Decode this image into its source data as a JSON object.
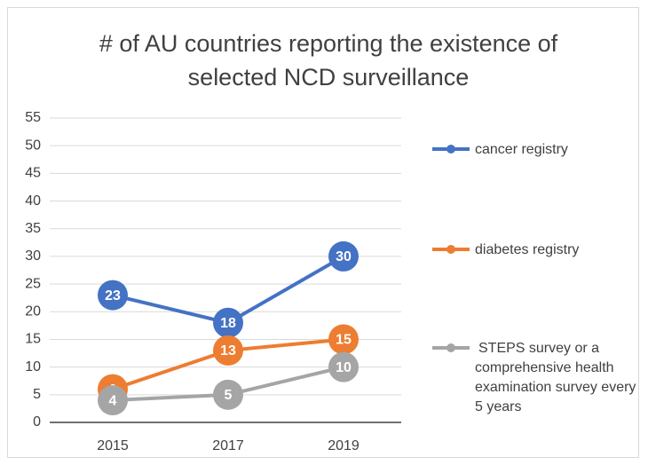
{
  "chart_data": {
    "type": "line",
    "title": "# of AU countries reporting the existence of selected NCD surveillance",
    "categories": [
      "2015",
      "2017",
      "2019"
    ],
    "series": [
      {
        "name": "cancer registry",
        "color": "#4472c4",
        "values": [
          23,
          18,
          30
        ]
      },
      {
        "name": "diabetes registry",
        "color": "#ed7d31",
        "values": [
          6,
          13,
          15
        ]
      },
      {
        "name": "STEPS survey or a comprehensive health examination survey every 5 years",
        "color": "#a5a5a5",
        "values": [
          4,
          5,
          10
        ]
      }
    ],
    "ylim": [
      0,
      55
    ],
    "yticks": [
      0,
      5,
      10,
      15,
      20,
      25,
      30,
      35,
      40,
      45,
      50,
      55
    ],
    "grid": true,
    "legend": "right",
    "data_labels": true
  }
}
